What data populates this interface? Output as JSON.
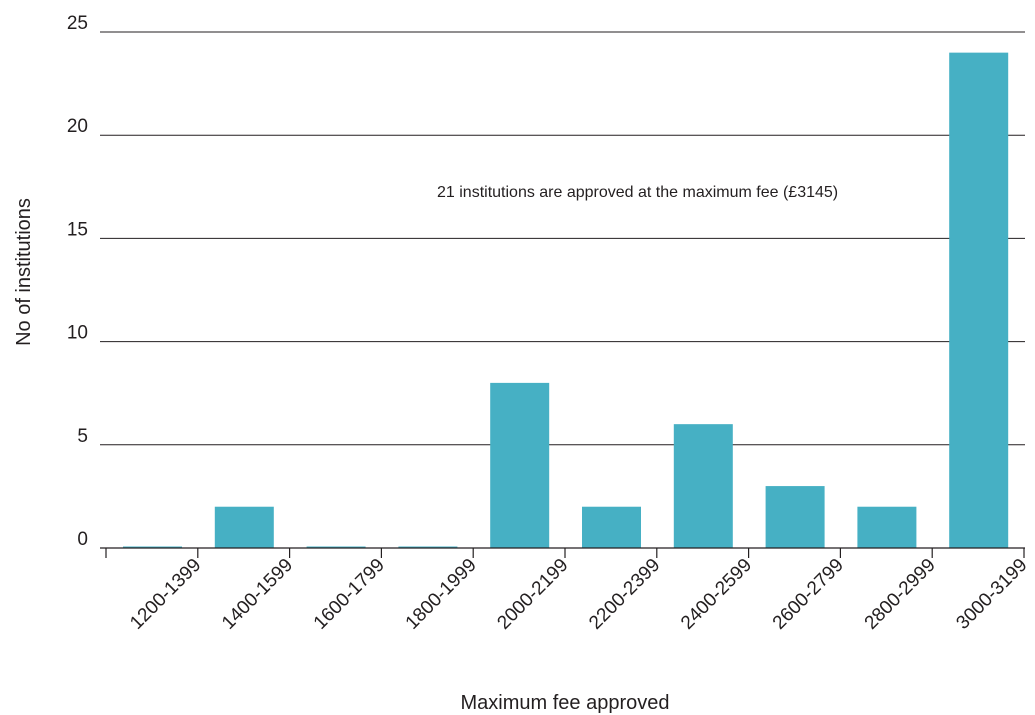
{
  "chart_data": {
    "type": "bar",
    "title": "",
    "xlabel": "Maximum fee approved",
    "ylabel": "No of institutions",
    "categories": [
      "1200-1399",
      "1400-1599",
      "1600-1799",
      "1800-1999",
      "2000-2199",
      "2200-2399",
      "2400-2599",
      "2600-2799",
      "2800-2999",
      "3000-3199"
    ],
    "values": [
      0,
      2,
      0,
      0,
      8,
      2,
      6,
      3,
      2,
      24
    ],
    "ylim": [
      0,
      25
    ],
    "yticks": [
      0,
      5,
      10,
      15,
      20,
      25
    ],
    "grid": true,
    "bar_color": "#46b0c4",
    "annotation": "21 institutions are approved at the maximum fee (£3145)"
  }
}
